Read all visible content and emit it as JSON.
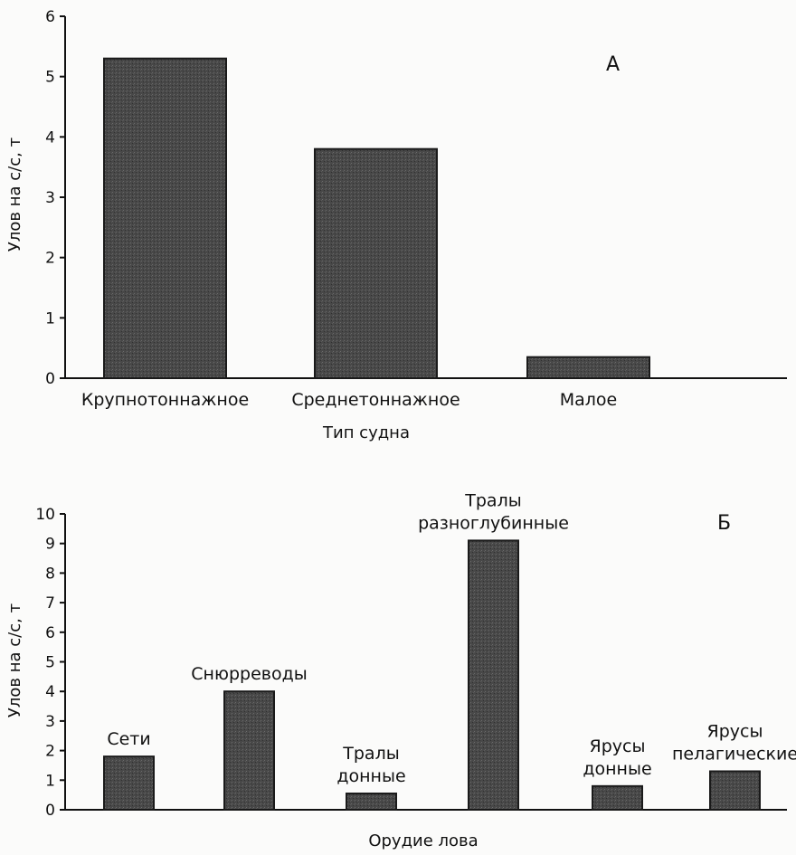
{
  "chart_data": [
    {
      "type": "bar",
      "panel_label": "А",
      "categories": [
        "Крупнотоннажное",
        "Среднетоннажное",
        "Малое"
      ],
      "values": [
        5.3,
        3.8,
        0.35
      ],
      "xlabel": "Тип судна",
      "ylabel": "Улов на с/с, т",
      "ylim": [
        0,
        6
      ],
      "yticks": [
        "0",
        "1",
        "2",
        "3",
        "4",
        "5",
        "6"
      ],
      "grid": false,
      "bar_color": "#4a4a4a"
    },
    {
      "type": "bar",
      "panel_label": "Б",
      "categories": [
        "Сети",
        "Снюрреводы",
        "Тралы донные",
        "Тралы разноглубинные",
        "Ярусы донные",
        "Ярусы пелагические"
      ],
      "category_lines": [
        [
          "Сети"
        ],
        [
          "Снюрреводы"
        ],
        [
          "Тралы",
          "донные"
        ],
        [
          "Тралы",
          "разноглубинные"
        ],
        [
          "Ярусы",
          "донные"
        ],
        [
          "Ярусы",
          "пелагические"
        ]
      ],
      "values": [
        1.8,
        4.0,
        0.55,
        9.1,
        0.8,
        1.3
      ],
      "xlabel": "Орудие лова",
      "ylabel": "Улов на с/с, т",
      "ylim": [
        0,
        10
      ],
      "yticks": [
        "0",
        "1",
        "2",
        "3",
        "4",
        "5",
        "6",
        "7",
        "8",
        "9",
        "10"
      ],
      "grid": false,
      "bar_color": "#4a4a4a"
    }
  ]
}
